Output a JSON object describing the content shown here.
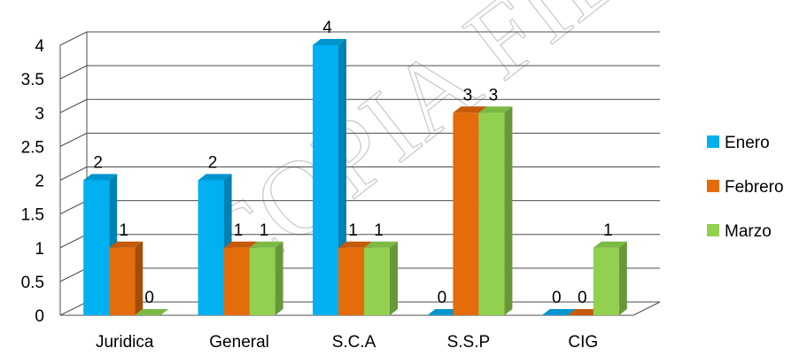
{
  "watermark": "COPIA FIEL",
  "colors": {
    "Enero": {
      "front": "#00b0f0",
      "side": "#0081b3",
      "top": "#0095cf"
    },
    "Febrero": {
      "front": "#e46c0a",
      "side": "#a34d06",
      "top": "#c55a08"
    },
    "Marzo": {
      "front": "#92d050",
      "side": "#679838",
      "top": "#7cb844"
    }
  },
  "chart_data": {
    "type": "bar",
    "title": "",
    "xlabel": "",
    "ylabel": "",
    "ylim": [
      0,
      4
    ],
    "yticks": [
      "0",
      "0.5",
      "1",
      "1.5",
      "2",
      "2.5",
      "3",
      "3.5",
      "4"
    ],
    "grid": true,
    "legend_position": "right",
    "categories": [
      "Juridica",
      "General",
      "S.C.A",
      "S.S.P",
      "CIG"
    ],
    "series": [
      {
        "name": "Enero",
        "values": [
          2,
          2,
          4,
          0,
          0
        ]
      },
      {
        "name": "Febrero",
        "values": [
          1,
          1,
          1,
          3,
          0
        ]
      },
      {
        "name": "Marzo",
        "values": [
          0,
          1,
          1,
          3,
          1
        ]
      }
    ]
  }
}
